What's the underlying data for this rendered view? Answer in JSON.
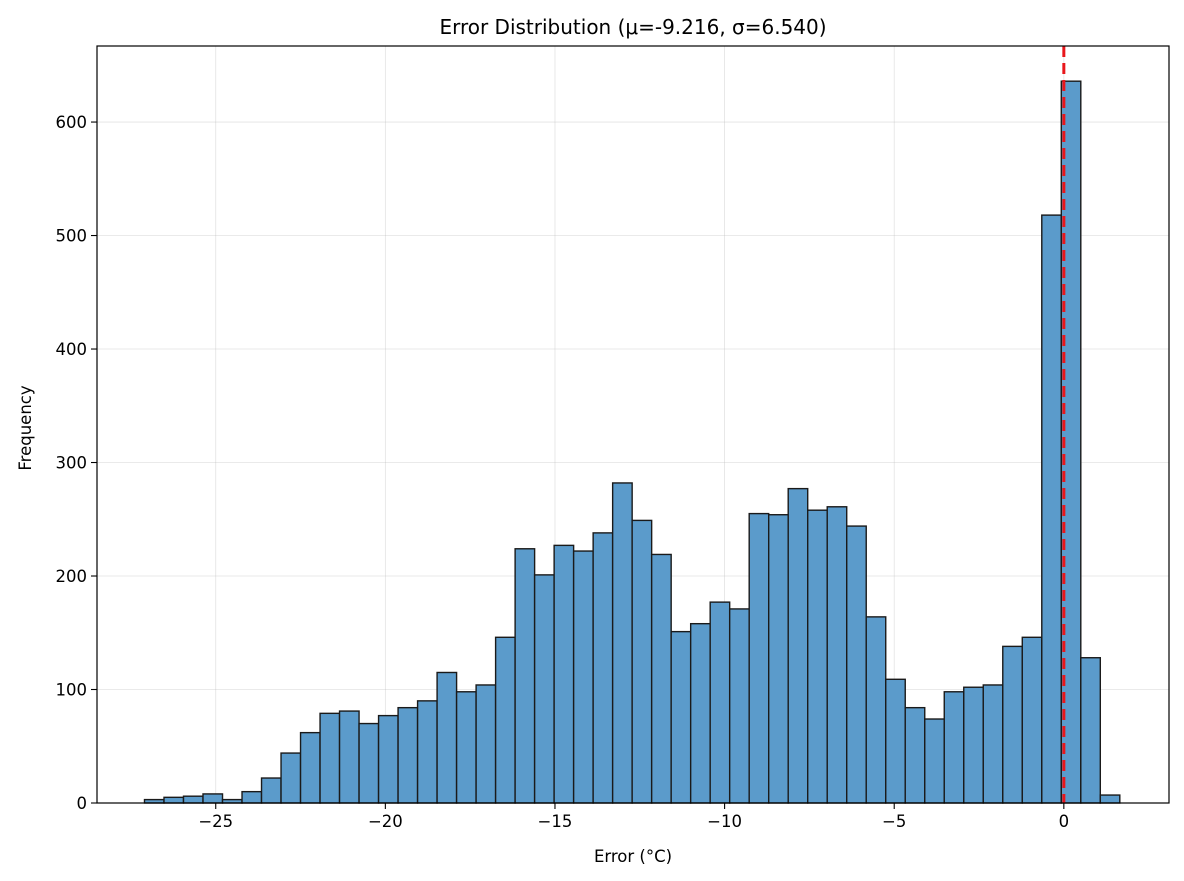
{
  "chart_data": {
    "type": "bar",
    "title": "Error Distribution (μ=-9.216, σ=6.540)",
    "xlabel": "Error (°C)",
    "ylabel": "Frequency",
    "xlim": [
      -28.5,
      3.1
    ],
    "ylim": [
      0,
      667
    ],
    "xticks": [
      -25,
      -20,
      -15,
      -10,
      -5,
      0
    ],
    "xtick_labels": [
      "−25",
      "−20",
      "−15",
      "−10",
      "−5",
      "0"
    ],
    "yticks": [
      0,
      100,
      200,
      300,
      400,
      500,
      600
    ],
    "ytick_labels": [
      "0",
      "100",
      "200",
      "300",
      "400",
      "500",
      "600"
    ],
    "grid": true,
    "legend": "none",
    "bin_start": -27.1,
    "bin_width": 0.575,
    "values": [
      3,
      5,
      6,
      8,
      3,
      10,
      22,
      44,
      62,
      79,
      81,
      70,
      77,
      84,
      90,
      115,
      98,
      104,
      146,
      224,
      201,
      227,
      222,
      238,
      282,
      249,
      219,
      151,
      158,
      177,
      171,
      255,
      254,
      277,
      258,
      261,
      244,
      164,
      109,
      84,
      74,
      98,
      102,
      104,
      138,
      146,
      518,
      636,
      128,
      7
    ],
    "reference_line_x": 0,
    "bar_color": "#5b9bcb",
    "bar_edge_color": "#1a1a1a",
    "reference_line_color": "#e8161b"
  }
}
